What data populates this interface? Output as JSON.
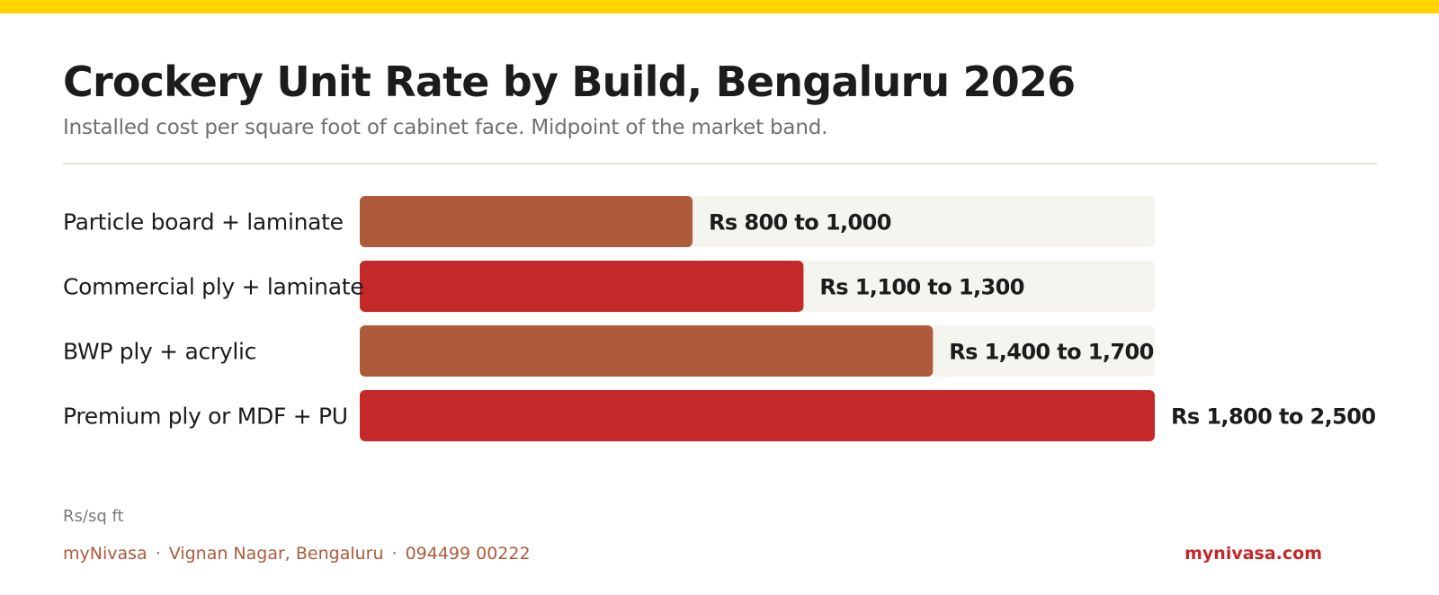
{
  "header": {
    "title": "Crockery Unit Rate by Build, Bengaluru 2026",
    "subtitle": "Installed cost per square foot of cabinet face. Midpoint of the market band."
  },
  "chart_data": {
    "type": "bar",
    "orientation": "horizontal",
    "unit": "Rs/sq ft",
    "categories": [
      "Particle board + laminate",
      "Commercial ply + laminate",
      "BWP ply + acrylic",
      "Premium ply or MDF + PU"
    ],
    "values": [
      900,
      1200,
      1550,
      2150
    ],
    "value_labels": [
      "Rs 800 to 1,000",
      "Rs 1,100 to 1,300",
      "Rs 1,400 to 1,700",
      "Rs 1,800 to 2,500"
    ],
    "xlim": [
      0,
      2150
    ],
    "grid": false,
    "legend": "none"
  },
  "footer": {
    "unit_note": "Rs/sq ft",
    "brand": "myNivasa",
    "location": "Vignan Nagar, Bengaluru",
    "phone": "094499 00222",
    "separator": "·",
    "website": "mynivasa.com"
  },
  "colors": {
    "top_strip": "#FFD400",
    "bar_primary": "#AD5B3B",
    "bar_secondary": "#C42828",
    "track": "#F6F4EE",
    "brand_text": "#AD5B3B",
    "website_text": "#C42828"
  }
}
